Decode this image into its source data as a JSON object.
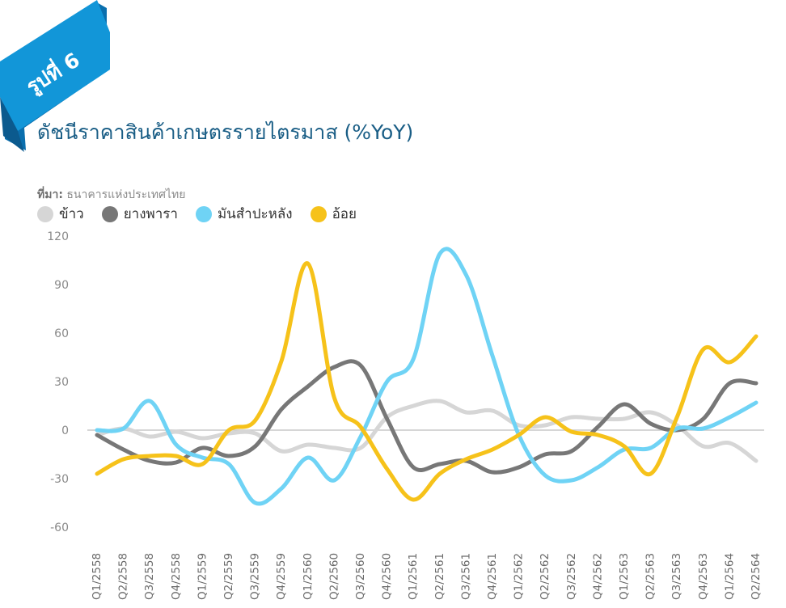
{
  "badge": {
    "text": "รูปที่ 6"
  },
  "header": {
    "title": "ดัชนีราคาสินค้าเกษตรรายไตรมาส (%YoY)",
    "source_label": "ที่มา:",
    "source_text": "ธนาคารแห่งประเทศไทย"
  },
  "colors": {
    "badge_blue": "#1296d8",
    "title_color": "#1a5e86",
    "rice": "#d6d6d6",
    "rubber": "#777777",
    "cassava": "#6fd3f5",
    "sugarcane": "#f6c21a"
  },
  "chart_data": {
    "type": "line",
    "title": "ดัชนีราคาสินค้าเกษตรรายไตรมาส (%YoY)",
    "xlabel": "",
    "ylabel": "",
    "ylim": [
      -60,
      120
    ],
    "yticks": [
      "120",
      "90",
      "60",
      "30",
      "0",
      "-30",
      "-60"
    ],
    "grid": false,
    "legend_position": "top-left",
    "categories": [
      "Q1/2558",
      "Q2/2558",
      "Q3/2558",
      "Q4/2558",
      "Q1/2559",
      "Q2/2559",
      "Q3/2559",
      "Q4/2559",
      "Q1/2560",
      "Q2/2560",
      "Q3/2560",
      "Q4/2560",
      "Q1/2561",
      "Q2/2561",
      "Q3/2561",
      "Q4/2561",
      "Q1/2562",
      "Q2/2562",
      "Q3/2562",
      "Q4/2562",
      "Q1/2563",
      "Q2/2563",
      "Q3/2563",
      "Q4/2563",
      "Q1/2564",
      "Q2/2564"
    ],
    "series": [
      {
        "name": "ข้าว",
        "color": "#d6d6d6",
        "values": [
          -3,
          1,
          -4,
          -1,
          -5,
          -2,
          -2,
          -13,
          -9,
          -11,
          -11,
          8,
          15,
          18,
          11,
          12,
          3,
          3,
          8,
          7,
          7,
          11,
          3,
          -10,
          -8,
          -19
        ]
      },
      {
        "name": "ยางพารา",
        "color": "#777777",
        "values": [
          -3,
          -12,
          -19,
          -20,
          -11,
          -16,
          -10,
          13,
          27,
          39,
          40,
          7,
          -23,
          -21,
          -19,
          -26,
          -23,
          -15,
          -13,
          2,
          16,
          4,
          0,
          7,
          29,
          29
        ]
      },
      {
        "name": "มันสำปะหลัง",
        "color": "#6fd3f5",
        "values": [
          0,
          1,
          18,
          -9,
          -17,
          -21,
          -45,
          -36,
          -17,
          -31,
          -4,
          30,
          44,
          109,
          96,
          46,
          -3,
          -28,
          -31,
          -23,
          -12,
          -11,
          1,
          1,
          8,
          17
        ]
      },
      {
        "name": "อ้อย",
        "color": "#f6c21a",
        "values": [
          -27,
          -18,
          -16,
          -16,
          -21,
          0,
          6,
          43,
          103,
          20,
          2,
          -24,
          -43,
          -27,
          -18,
          -12,
          -3,
          8,
          -1,
          -3,
          -10,
          -27,
          8,
          50,
          42,
          58
        ]
      }
    ]
  }
}
